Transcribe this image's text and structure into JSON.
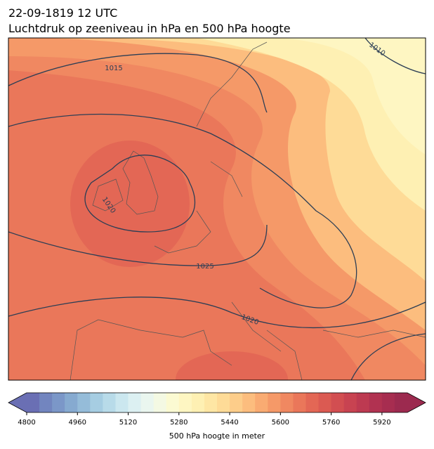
{
  "header": {
    "date": "22-09-1819 12 UTC",
    "title": "Luchtdruk op zeeniveau in hPa en 500 hPa hoogte"
  },
  "map": {
    "contour_labels": [
      1015,
      1010,
      1020,
      1025,
      1020
    ]
  },
  "colorbar": {
    "lim": [
      4800,
      6000
    ],
    "ticks": [
      4800,
      4960,
      5120,
      5280,
      5440,
      5600,
      5760,
      5920
    ],
    "colors": [
      "#6a6fb4",
      "#7285bf",
      "#7b97c8",
      "#86aad0",
      "#95bcd9",
      "#a6cde2",
      "#b8dbe9",
      "#cbe7ef",
      "#dcf0f2",
      "#eaf6ef",
      "#f4f9e3",
      "#fbfad2",
      "#fef6c2",
      "#fef0b3",
      "#fee6a4",
      "#fedb97",
      "#fdcd8a",
      "#fcbd7e",
      "#f9ab72",
      "#f59968",
      "#f08861",
      "#ea775a",
      "#e36755",
      "#db5a52",
      "#d24e51",
      "#c84351",
      "#bd3a51",
      "#b13251",
      "#a72d50",
      "#9c2a4f"
    ],
    "label": "500 hPa hoogte in meter"
  }
}
